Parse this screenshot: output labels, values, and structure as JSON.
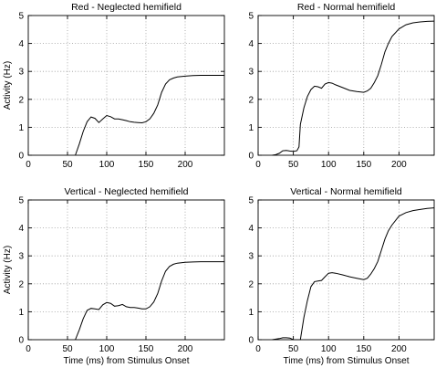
{
  "chart_data": [
    {
      "type": "line",
      "title": "Red - Neglected hemifield",
      "ylabel": "Activity (Hz)",
      "xlabel": "",
      "xlim": [
        0,
        250
      ],
      "ylim": [
        0,
        5
      ],
      "xticks": [
        0,
        50,
        100,
        150,
        200
      ],
      "yticks": [
        0,
        1,
        2,
        3,
        4,
        5
      ],
      "grid": true,
      "x": [
        60,
        65,
        70,
        75,
        80,
        85,
        90,
        95,
        100,
        105,
        110,
        115,
        120,
        125,
        130,
        135,
        140,
        145,
        150,
        155,
        160,
        165,
        170,
        175,
        180,
        185,
        190,
        200,
        210,
        220,
        230,
        240,
        250
      ],
      "y": [
        0.0,
        0.4,
        0.85,
        1.2,
        1.37,
        1.32,
        1.17,
        1.3,
        1.42,
        1.38,
        1.3,
        1.3,
        1.27,
        1.24,
        1.2,
        1.18,
        1.17,
        1.16,
        1.2,
        1.3,
        1.5,
        1.8,
        2.25,
        2.55,
        2.7,
        2.76,
        2.8,
        2.83,
        2.85,
        2.86,
        2.86,
        2.86,
        2.86
      ]
    },
    {
      "type": "line",
      "title": "Red - Normal hemifield",
      "ylabel": "",
      "xlabel": "",
      "xlim": [
        0,
        250
      ],
      "ylim": [
        0,
        5
      ],
      "xticks": [
        0,
        50,
        100,
        150,
        200
      ],
      "yticks": [
        0,
        1,
        2,
        3,
        4,
        5
      ],
      "grid": true,
      "x": [
        20,
        25,
        30,
        35,
        40,
        45,
        50,
        55,
        58,
        60,
        65,
        70,
        75,
        80,
        85,
        90,
        95,
        100,
        105,
        110,
        120,
        130,
        140,
        150,
        155,
        160,
        165,
        170,
        175,
        180,
        185,
        190,
        200,
        210,
        220,
        230,
        240,
        250
      ],
      "y": [
        0.0,
        0.02,
        0.07,
        0.16,
        0.17,
        0.15,
        0.14,
        0.16,
        0.3,
        1.1,
        1.7,
        2.1,
        2.35,
        2.47,
        2.45,
        2.4,
        2.55,
        2.6,
        2.58,
        2.52,
        2.42,
        2.32,
        2.28,
        2.25,
        2.3,
        2.4,
        2.6,
        2.85,
        3.25,
        3.7,
        4.0,
        4.25,
        4.52,
        4.67,
        4.74,
        4.77,
        4.79,
        4.8
      ]
    },
    {
      "type": "line",
      "title": "Vertical - Neglected hemifield",
      "ylabel": "Activity (Hz)",
      "xlabel": "Time (ms) from Stimulus Onset",
      "xlim": [
        0,
        250
      ],
      "ylim": [
        0,
        5
      ],
      "xticks": [
        0,
        50,
        100,
        150,
        200
      ],
      "yticks": [
        0,
        1,
        2,
        3,
        4,
        5
      ],
      "grid": true,
      "x": [
        60,
        65,
        70,
        75,
        80,
        85,
        90,
        95,
        100,
        105,
        110,
        115,
        120,
        125,
        130,
        135,
        140,
        145,
        150,
        155,
        160,
        165,
        170,
        175,
        180,
        185,
        190,
        200,
        210,
        220,
        230,
        240,
        250
      ],
      "y": [
        0.0,
        0.35,
        0.75,
        1.05,
        1.12,
        1.1,
        1.08,
        1.25,
        1.33,
        1.3,
        1.2,
        1.22,
        1.26,
        1.18,
        1.15,
        1.15,
        1.13,
        1.1,
        1.1,
        1.18,
        1.35,
        1.65,
        2.1,
        2.45,
        2.62,
        2.7,
        2.74,
        2.77,
        2.78,
        2.79,
        2.79,
        2.79,
        2.79
      ]
    },
    {
      "type": "line",
      "title": "Vertical - Normal hemifield",
      "ylabel": "",
      "xlabel": "Time (ms) from Stimulus Onset",
      "xlim": [
        0,
        250
      ],
      "ylim": [
        0,
        5
      ],
      "xticks": [
        0,
        50,
        100,
        150,
        200
      ],
      "yticks": [
        0,
        1,
        2,
        3,
        4,
        5
      ],
      "grid": true,
      "x": [
        20,
        25,
        30,
        35,
        40,
        45,
        50,
        55,
        60,
        65,
        70,
        75,
        80,
        85,
        90,
        95,
        100,
        105,
        110,
        120,
        130,
        140,
        150,
        155,
        160,
        165,
        170,
        175,
        180,
        185,
        190,
        200,
        210,
        220,
        230,
        240,
        250
      ],
      "y": [
        0.0,
        0.02,
        0.04,
        0.07,
        0.07,
        0.06,
        0.0,
        0.0,
        0.0,
        0.8,
        1.4,
        1.9,
        2.08,
        2.1,
        2.12,
        2.25,
        2.38,
        2.4,
        2.38,
        2.32,
        2.25,
        2.2,
        2.15,
        2.2,
        2.35,
        2.55,
        2.8,
        3.2,
        3.6,
        3.9,
        4.1,
        4.42,
        4.55,
        4.62,
        4.66,
        4.7,
        4.72
      ]
    }
  ]
}
